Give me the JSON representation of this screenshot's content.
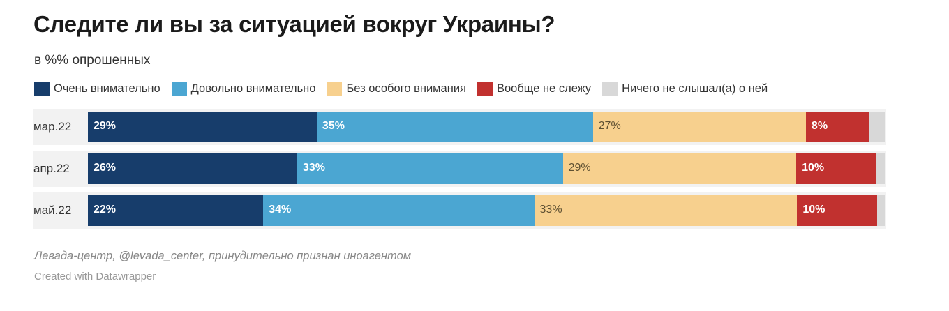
{
  "title": "Следите ли вы за ситуацией вокруг Украины?",
  "subtitle": "в %% опрошенных",
  "source": "Левада-центр, @levada_center, принудительно признан иноагентом",
  "credit": "Created with Datawrapper",
  "chart_data": {
    "type": "bar",
    "orientation": "horizontal",
    "stacked": true,
    "normalized_to": 100,
    "categories": [
      "мар.22",
      "апр.22",
      "май.22"
    ],
    "series": [
      {
        "name": "Очень внимательно",
        "color": "#173d6b",
        "values": [
          29,
          26,
          22
        ]
      },
      {
        "name": "Довольно внимательно",
        "color": "#4ba6d2",
        "values": [
          35,
          33,
          34
        ]
      },
      {
        "name": "Без особого внимания",
        "color": "#f7d08e",
        "values": [
          27,
          29,
          33
        ]
      },
      {
        "name": "Вообще не слежу",
        "color": "#c1312f",
        "values": [
          8,
          10,
          10
        ]
      },
      {
        "name": "Ничего не слышал(а) о ней",
        "color": "#d8d8d8",
        "values": [
          2,
          1,
          1
        ]
      }
    ],
    "data_labels_shown_for_series": [
      0,
      1,
      2,
      3
    ],
    "legend_position": "top-left"
  }
}
